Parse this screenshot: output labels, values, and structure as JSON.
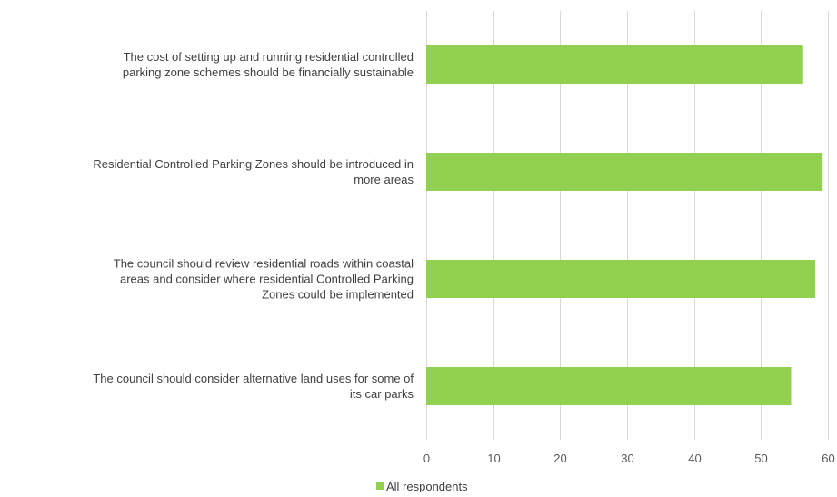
{
  "chart_data": {
    "type": "bar",
    "orientation": "horizontal",
    "categories": [
      [
        "The cost of setting up and running residential controlled",
        "parking zone schemes should be financially sustainable"
      ],
      [
        "Residential Controlled Parking Zones should be introduced in",
        "more areas"
      ],
      [
        "The council should review residential roads within coastal",
        "areas and consider where residential Controlled Parking",
        "Zones could be implemented"
      ],
      [
        "The council should consider alternative land uses for some of",
        "its car parks"
      ]
    ],
    "series": [
      {
        "name": "All respondents",
        "values": [
          56.3,
          59.2,
          58.1,
          54.5
        ],
        "color": "#92d050"
      }
    ],
    "xlim": [
      0,
      60
    ],
    "xticks": [
      "0",
      "10",
      "20",
      "30",
      "40",
      "50",
      "60"
    ],
    "grid": true,
    "gridColor": "#d9d9d9",
    "legend": "bottom-center"
  }
}
